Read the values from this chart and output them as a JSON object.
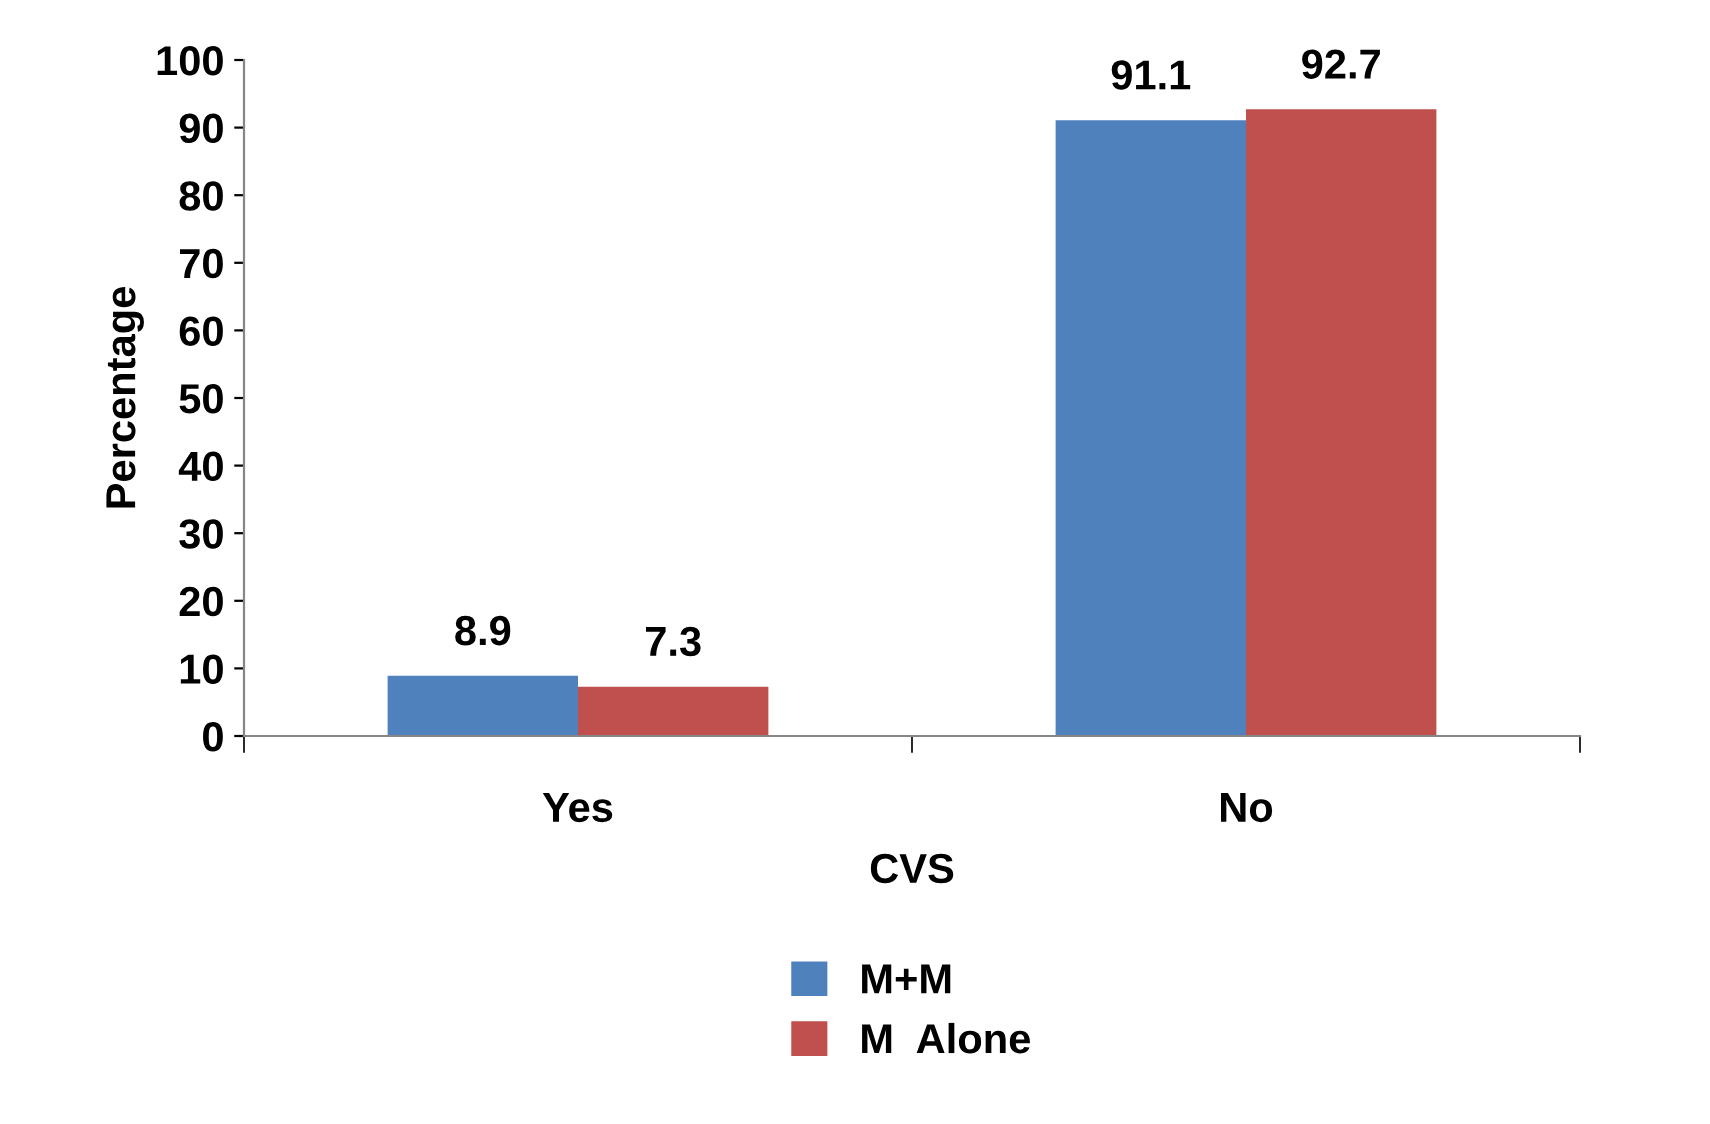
{
  "chart_data": {
    "type": "bar",
    "xlabel": "CVS",
    "ylabel": "Percentage",
    "categories": [
      "Yes",
      "No"
    ],
    "series": [
      {
        "name": "M+M",
        "color": "#4f81bd",
        "values": [
          8.9,
          91.1
        ]
      },
      {
        "name": "M  Alone",
        "color": "#c0504d",
        "values": [
          7.3,
          92.7
        ]
      }
    ],
    "ylim": [
      0,
      100
    ],
    "yticks": [
      0,
      10,
      20,
      30,
      40,
      50,
      60,
      70,
      80,
      90,
      100
    ],
    "data_labels": true,
    "grid": false,
    "legend": "bottom"
  }
}
